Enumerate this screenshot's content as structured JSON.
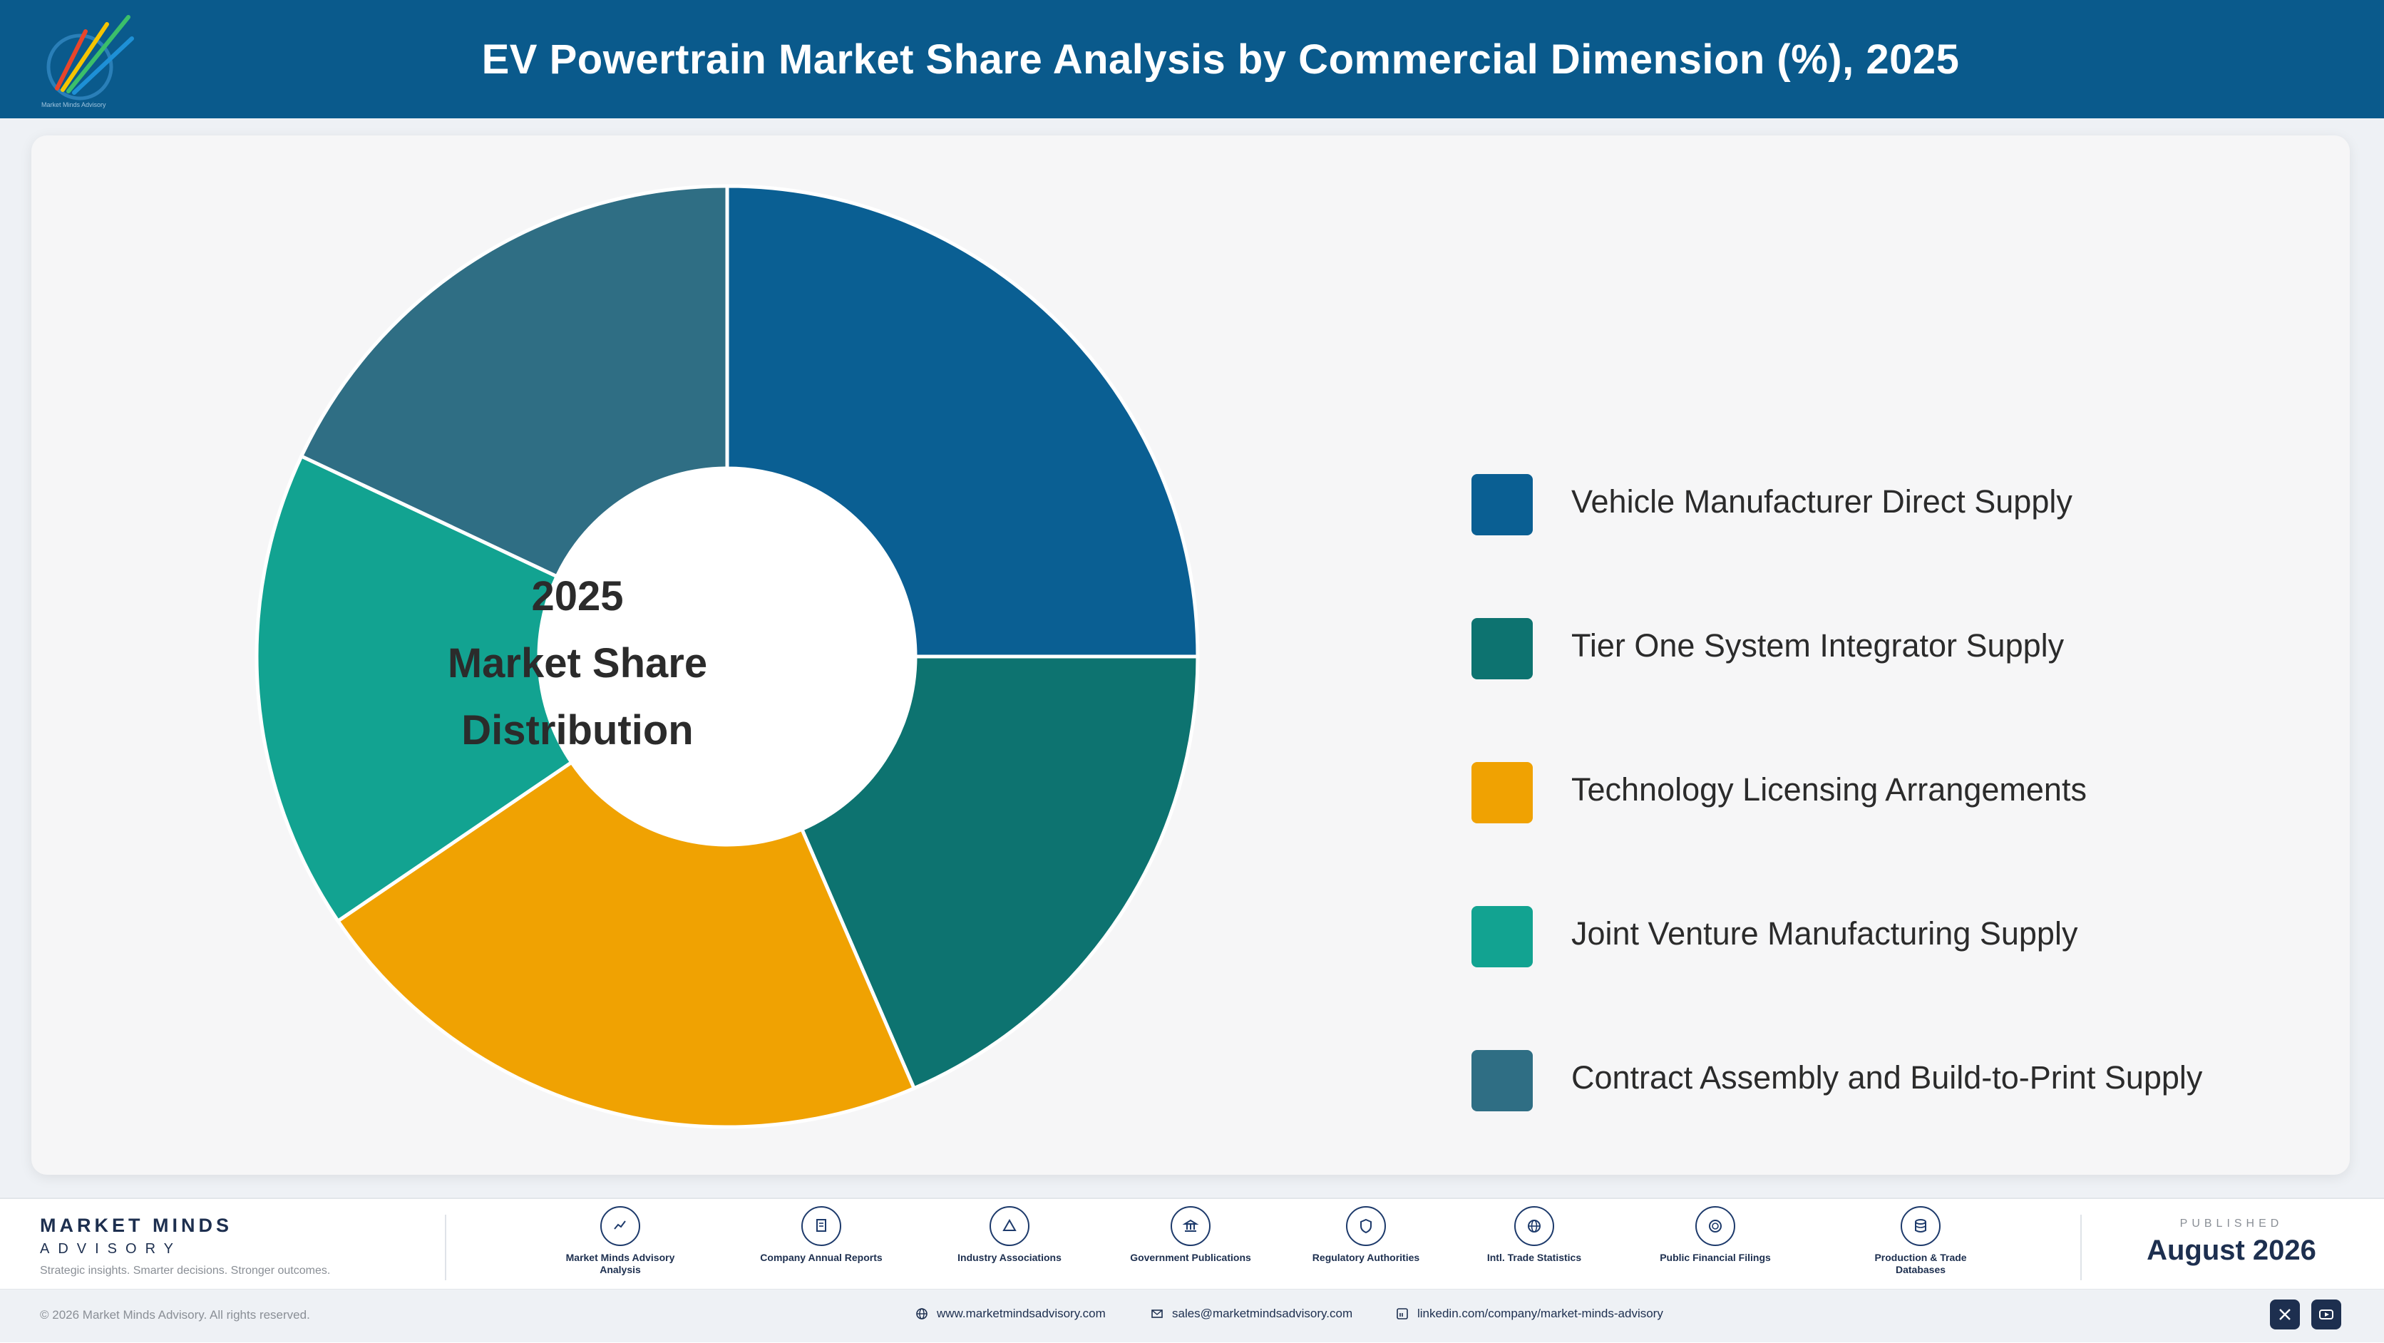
{
  "header": {
    "title": "EV Powertrain Market Share Analysis by Commercial Dimension (%), 2025"
  },
  "logo": {
    "text": "Market Minds Advisory"
  },
  "chart_data": {
    "type": "pie",
    "title": "EV Powertrain Market Share Analysis by Commercial Dimension (%), 2025",
    "center_label": [
      "2025",
      "Market Share",
      "Distribution"
    ],
    "legend_position": "right",
    "series": [
      {
        "name": "Vehicle Manufacturer Direct Supply",
        "value": 25.0,
        "color": "#0a5f93"
      },
      {
        "name": "Tier One System Integrator Supply",
        "value": 18.5,
        "color": "#0d7370"
      },
      {
        "name": "Technology Licensing Arrangements",
        "value": 22.0,
        "color": "#f0a202"
      },
      {
        "name": "Joint Venture Manufacturing Supply",
        "value": 16.5,
        "color": "#12a391"
      },
      {
        "name": "Contract Assembly and Build-to-Print Supply",
        "value": 18.0,
        "color": "#2f6e84"
      }
    ]
  },
  "footer": {
    "brand_name": "MARKET MINDS",
    "brand_sub": "ADVISORY",
    "brand_tagline": "Strategic insights. Smarter decisions. Stronger outcomes.",
    "sources": [
      {
        "label": "Market Minds Advisory Analysis",
        "icon": "chart-icon"
      },
      {
        "label": "Company Annual Reports",
        "icon": "document-icon"
      },
      {
        "label": "Industry Associations",
        "icon": "network-icon"
      },
      {
        "label": "Government Publications",
        "icon": "government-icon"
      },
      {
        "label": "Regulatory Authorities",
        "icon": "shield-icon"
      },
      {
        "label": "Intl. Trade Statistics",
        "icon": "globe-icon"
      },
      {
        "label": "Public Financial Filings",
        "icon": "coin-icon"
      },
      {
        "label": "Production & Trade Databases",
        "icon": "database-icon"
      }
    ],
    "published_label": "PUBLISHED",
    "published_date": "August 2026"
  },
  "bottom": {
    "copyright": "© 2026 Market Minds Advisory. All rights reserved.",
    "website": "www.marketmindsadvisory.com",
    "email": "sales@marketmindsadvisory.com",
    "linkedin": "linkedin.com/company/market-minds-advisory"
  }
}
